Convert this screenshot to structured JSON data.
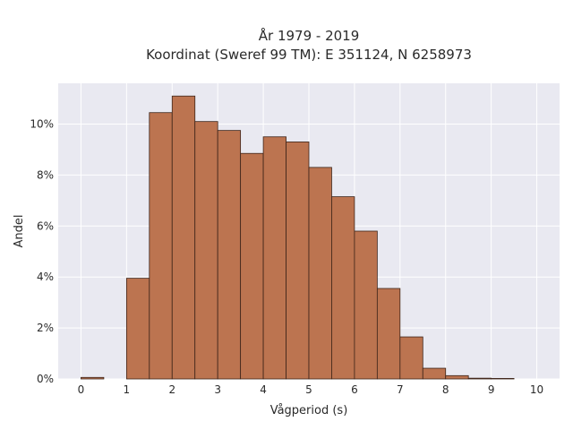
{
  "chart_data": {
    "type": "bar",
    "title": "År 1979 - 2019",
    "subtitle": "Koordinat (Sweref 99 TM): E 351124, N 6258973",
    "xlabel": "Vågperiod (s)",
    "ylabel": "Andel",
    "bin_width": 0.5,
    "bin_starts": [
      0,
      0.5,
      1,
      1.5,
      2,
      2.5,
      3,
      3.5,
      4,
      4.5,
      5,
      5.5,
      6,
      6.5,
      7,
      7.5,
      8,
      8.5,
      9,
      9.5
    ],
    "values": [
      0.06,
      0,
      3.95,
      10.45,
      11.1,
      10.1,
      9.75,
      8.85,
      9.5,
      9.3,
      8.3,
      7.15,
      5.8,
      3.55,
      1.65,
      0.42,
      0.13,
      0.03,
      0.02,
      0
    ],
    "value_unit": "%",
    "xlim": [
      -0.5,
      10.5
    ],
    "ylim": [
      0,
      11.6
    ],
    "x_ticks": [
      0,
      1,
      2,
      3,
      4,
      5,
      6,
      7,
      8,
      9,
      10
    ],
    "x_tick_labels": [
      "0",
      "1",
      "2",
      "3",
      "4",
      "5",
      "6",
      "7",
      "8",
      "9",
      "10"
    ],
    "y_ticks": [
      0,
      2,
      4,
      6,
      8,
      10
    ],
    "y_tick_labels": [
      "0%",
      "2%",
      "4%",
      "6%",
      "8%",
      "10%"
    ],
    "grid": true,
    "colors": {
      "bar_fill": "#bc7450",
      "bar_stroke": "#3d2419",
      "plot_background": "#e9e9f1",
      "grid": "#ffffff"
    }
  }
}
